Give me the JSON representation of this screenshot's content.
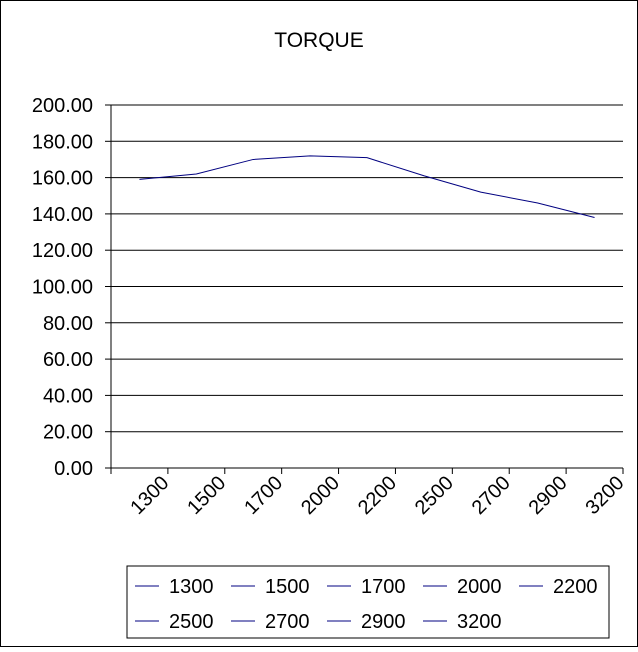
{
  "chart_data": {
    "type": "line",
    "title": "TORQUE",
    "xlabel": "",
    "ylabel": "",
    "categories": [
      "1300",
      "1500",
      "1700",
      "2000",
      "2200",
      "2500",
      "2700",
      "2900",
      "3200"
    ],
    "series": [
      {
        "values": [
          159.0,
          162.0,
          170.0,
          172.0,
          171.0,
          161.0,
          152.0,
          146.0,
          138.0
        ]
      }
    ],
    "ylim": [
      0,
      200
    ],
    "yticks": [
      "0.00",
      "20.00",
      "40.00",
      "60.00",
      "80.00",
      "100.00",
      "120.00",
      "140.00",
      "160.00",
      "180.00",
      "200.00"
    ],
    "grid": true,
    "legend": {
      "position": "bottom",
      "entries": [
        "1300",
        "1500",
        "1700",
        "2000",
        "2200",
        "2500",
        "2700",
        "2900",
        "3200"
      ]
    },
    "colors": {
      "line": "#000080",
      "grid": "#000000",
      "axis": "#000000",
      "legend_swatch": "#000080"
    }
  }
}
